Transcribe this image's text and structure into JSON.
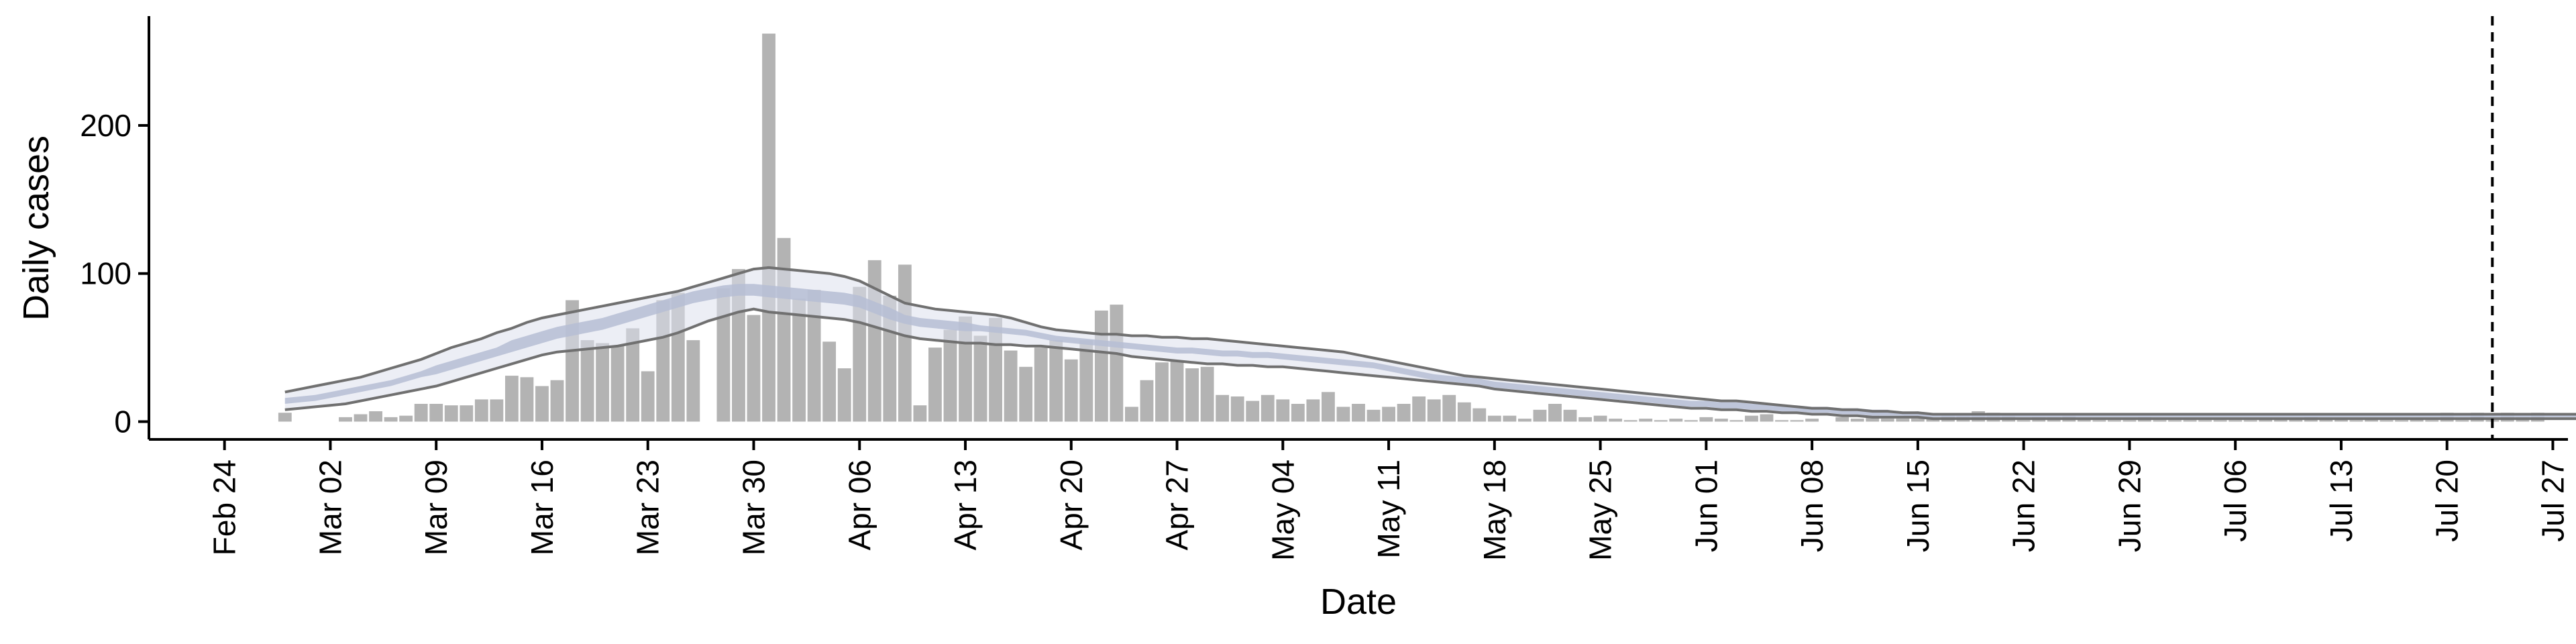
{
  "chart_data": {
    "type": "bar",
    "xlabel": "Date",
    "ylabel": "Daily cases",
    "ylim": [
      -12,
      272
    ],
    "xlim": [
      "2020-02-19",
      "2020-07-28"
    ],
    "y_ticks": [
      0,
      100,
      200
    ],
    "x_ticks": [
      {
        "date": "2020-02-24",
        "label": "Feb 24"
      },
      {
        "date": "2020-03-02",
        "label": "Mar 02"
      },
      {
        "date": "2020-03-09",
        "label": "Mar 09"
      },
      {
        "date": "2020-03-16",
        "label": "Mar 16"
      },
      {
        "date": "2020-03-23",
        "label": "Mar 23"
      },
      {
        "date": "2020-03-30",
        "label": "Mar 30"
      },
      {
        "date": "2020-04-06",
        "label": "Apr 06"
      },
      {
        "date": "2020-04-13",
        "label": "Apr 13"
      },
      {
        "date": "2020-04-20",
        "label": "Apr 20"
      },
      {
        "date": "2020-04-27",
        "label": "Apr 27"
      },
      {
        "date": "2020-05-04",
        "label": "May 04"
      },
      {
        "date": "2020-05-11",
        "label": "May 11"
      },
      {
        "date": "2020-05-18",
        "label": "May 18"
      },
      {
        "date": "2020-05-25",
        "label": "May 25"
      },
      {
        "date": "2020-06-01",
        "label": "Jun 01"
      },
      {
        "date": "2020-06-08",
        "label": "Jun 08"
      },
      {
        "date": "2020-06-15",
        "label": "Jun 15"
      },
      {
        "date": "2020-06-22",
        "label": "Jun 22"
      },
      {
        "date": "2020-06-29",
        "label": "Jun 29"
      },
      {
        "date": "2020-07-06",
        "label": "Jul 06"
      },
      {
        "date": "2020-07-13",
        "label": "Jul 13"
      },
      {
        "date": "2020-07-20",
        "label": "Jul 20"
      },
      {
        "date": "2020-07-27",
        "label": "Jul 27"
      }
    ],
    "vline_date": "2020-07-23",
    "bars_start_date": "2020-02-28",
    "bars": [
      6,
      0,
      0,
      0,
      3,
      5,
      7,
      3,
      4,
      12,
      12,
      11,
      11,
      15,
      15,
      31,
      30,
      24,
      28,
      82,
      55,
      53,
      51,
      63,
      34,
      82,
      87,
      55,
      0,
      90,
      103,
      72,
      262,
      124,
      83,
      89,
      54,
      36,
      91,
      109,
      85,
      106,
      11,
      50,
      62,
      71,
      58,
      70,
      48,
      37,
      50,
      55,
      42,
      55,
      75,
      79,
      10,
      28,
      40,
      41,
      36,
      37,
      18,
      17,
      14,
      18,
      15,
      12,
      15,
      20,
      10,
      12,
      8,
      10,
      12,
      17,
      15,
      18,
      13,
      9,
      4,
      4,
      2,
      8,
      12,
      8,
      3,
      4,
      2,
      1,
      2,
      1,
      2,
      1,
      3,
      2,
      1,
      4,
      5,
      1,
      1,
      2,
      0,
      3,
      2,
      4,
      2,
      2,
      2,
      2,
      5,
      4,
      7,
      6,
      4,
      1,
      3,
      3,
      4,
      2,
      1,
      1,
      1,
      3,
      1,
      1,
      1,
      1,
      1,
      1,
      1,
      2,
      2,
      2,
      3,
      2,
      2,
      1,
      2,
      1,
      1,
      2,
      1,
      6,
      1,
      6,
      1,
      6,
      3,
      6,
      0,
      0,
      2,
      0,
      0,
      0,
      1,
      1,
      1,
      0,
      0,
      10,
      0,
      3,
      3
    ],
    "series": [
      {
        "start_date": "2020-02-28",
        "upper": [
          20,
          22,
          24,
          26,
          28,
          30,
          33,
          36,
          39,
          42,
          46,
          50,
          53,
          56,
          60,
          63,
          67,
          70,
          72,
          74,
          76,
          78,
          80,
          82,
          84,
          86,
          88,
          91,
          94,
          97,
          100,
          103,
          104,
          103,
          102,
          101,
          100,
          98,
          95,
          90,
          85,
          80,
          78,
          76,
          75,
          74,
          73,
          72,
          70,
          67,
          64,
          62,
          61,
          60,
          59,
          59,
          58,
          58,
          57,
          57,
          56,
          56,
          55,
          54,
          53,
          52,
          51,
          50,
          49,
          48,
          47,
          45,
          43,
          41,
          39,
          37,
          35,
          33,
          31,
          30,
          29,
          28,
          27,
          26,
          25,
          24,
          23,
          22,
          21,
          20,
          19,
          18,
          17,
          16,
          15,
          14,
          14,
          13,
          12,
          11,
          10,
          9,
          9,
          8,
          8,
          7,
          7,
          6,
          6,
          5,
          5,
          5,
          5,
          5,
          5,
          5,
          5,
          5,
          5,
          5,
          5,
          5,
          5,
          5,
          5,
          5,
          5,
          5,
          5,
          5,
          5,
          5,
          5,
          5,
          5,
          5,
          5,
          5,
          5,
          5,
          5,
          5,
          5,
          5,
          5,
          5,
          5,
          5,
          5,
          5,
          5,
          5,
          5,
          5,
          5,
          6,
          7,
          8,
          9,
          10
        ],
        "lower": [
          8,
          9,
          10,
          11,
          12,
          14,
          16,
          18,
          20,
          22,
          24,
          27,
          30,
          33,
          36,
          39,
          42,
          45,
          47,
          48,
          49,
          50,
          51,
          53,
          55,
          57,
          60,
          64,
          68,
          71,
          74,
          76,
          74,
          73,
          72,
          71,
          70,
          69,
          67,
          64,
          61,
          58,
          56,
          55,
          54,
          53,
          53,
          52,
          52,
          51,
          51,
          50,
          49,
          48,
          47,
          46,
          44,
          43,
          42,
          41,
          40,
          39,
          39,
          38,
          38,
          37,
          37,
          36,
          35,
          34,
          33,
          32,
          31,
          30,
          29,
          28,
          27,
          26,
          25,
          24,
          22,
          21,
          20,
          19,
          18,
          17,
          16,
          15,
          14,
          13,
          12,
          11,
          10,
          9,
          9,
          8,
          8,
          7,
          7,
          6,
          6,
          5,
          5,
          4,
          4,
          3,
          3,
          3,
          3,
          2,
          2,
          2,
          2,
          2,
          2,
          2,
          2,
          2,
          2,
          2,
          2,
          2,
          2,
          2,
          2,
          2,
          2,
          2,
          2,
          2,
          2,
          2,
          2,
          2,
          2,
          2,
          2,
          2,
          2,
          2,
          2,
          2,
          2,
          2,
          2,
          2,
          2,
          2,
          2,
          2,
          2,
          2,
          2,
          2,
          2,
          2,
          2,
          2,
          2,
          2
        ],
        "median": [
          14,
          15,
          16,
          18,
          20,
          22,
          24,
          26,
          29,
          32,
          35,
          38,
          41,
          44,
          47,
          51,
          54,
          57,
          60,
          62,
          64,
          66,
          69,
          72,
          75,
          78,
          81,
          84,
          86,
          88,
          89,
          89,
          88,
          87,
          86,
          85,
          84,
          83,
          81,
          77,
          73,
          69,
          67,
          66,
          65,
          64,
          63,
          62,
          61,
          60,
          58,
          56,
          55,
          54,
          53,
          52,
          51,
          50,
          49,
          48,
          48,
          47,
          46,
          46,
          45,
          45,
          44,
          43,
          42,
          41,
          40,
          39,
          38,
          36,
          34,
          32,
          30,
          29,
          28,
          27,
          25,
          24,
          23,
          22,
          21,
          20,
          19,
          18,
          17,
          16,
          15,
          14,
          13,
          12,
          12,
          11,
          11,
          10,
          10,
          9,
          9,
          8,
          8,
          7,
          7,
          6,
          6,
          5,
          5,
          4,
          4,
          4,
          4,
          4,
          4,
          4,
          4,
          4,
          4,
          4,
          4,
          4,
          4,
          4,
          4,
          4,
          4,
          4,
          4,
          4,
          4,
          4,
          4,
          4,
          4,
          4,
          4,
          4,
          4,
          4,
          4,
          4,
          4,
          4,
          4,
          4,
          4,
          4,
          4,
          4,
          4,
          4,
          4,
          4,
          4,
          5,
          5,
          6,
          7,
          8
        ],
        "band_low": [
          12,
          13,
          14,
          16,
          18,
          20,
          22,
          24,
          27,
          30,
          32,
          35,
          38,
          41,
          44,
          47,
          50,
          53,
          56,
          58,
          60,
          62,
          65,
          68,
          71,
          74,
          77,
          80,
          82,
          84,
          85,
          85,
          84,
          83,
          82,
          81,
          80,
          79,
          77,
          73,
          69,
          66,
          64,
          63,
          62,
          61,
          61,
          60,
          59,
          58,
          56,
          54,
          53,
          52,
          51,
          50,
          49,
          48,
          47,
          46,
          46,
          45,
          44,
          44,
          43,
          43,
          42,
          41,
          40,
          39,
          38,
          37,
          36,
          34,
          32,
          30,
          28,
          27,
          26,
          25,
          23,
          22,
          21,
          20,
          19,
          18,
          17,
          16,
          15,
          14,
          13,
          12,
          11,
          10,
          10,
          9,
          9,
          8,
          8,
          7,
          7,
          6,
          6,
          5,
          5,
          4,
          4,
          4,
          3,
          3,
          3,
          3,
          3,
          3,
          3,
          3,
          3,
          3,
          3,
          3,
          3,
          3,
          3,
          3,
          3,
          3,
          3,
          3,
          3,
          3,
          3,
          3,
          3,
          3,
          3,
          3,
          3,
          3,
          3,
          3,
          3,
          3,
          3,
          3,
          3,
          3,
          3,
          3,
          3,
          3,
          3,
          3,
          3,
          3,
          3,
          4,
          4,
          5,
          6,
          7
        ],
        "band_high": [
          16,
          17,
          18,
          20,
          22,
          24,
          26,
          28,
          31,
          34,
          38,
          41,
          44,
          47,
          50,
          55,
          58,
          61,
          64,
          66,
          68,
          70,
          73,
          76,
          79,
          82,
          85,
          88,
          90,
          92,
          93,
          93,
          92,
          91,
          90,
          89,
          88,
          87,
          85,
          81,
          77,
          72,
          70,
          69,
          68,
          67,
          65,
          64,
          63,
          62,
          60,
          58,
          57,
          56,
          55,
          54,
          53,
          52,
          51,
          50,
          50,
          49,
          48,
          48,
          47,
          47,
          46,
          45,
          44,
          43,
          42,
          41,
          40,
          38,
          36,
          34,
          32,
          31,
          30,
          29,
          27,
          26,
          25,
          24,
          23,
          22,
          21,
          20,
          19,
          18,
          17,
          16,
          15,
          14,
          14,
          13,
          13,
          12,
          12,
          11,
          11,
          10,
          10,
          9,
          9,
          8,
          8,
          6,
          7,
          5,
          5,
          5,
          5,
          5,
          5,
          5,
          5,
          5,
          5,
          5,
          5,
          5,
          5,
          5,
          5,
          5,
          5,
          5,
          5,
          5,
          5,
          5,
          5,
          5,
          5,
          5,
          5,
          5,
          5,
          5,
          5,
          5,
          5,
          5,
          5,
          5,
          5,
          5,
          5,
          5,
          5,
          5,
          5,
          5,
          5,
          6,
          6,
          7,
          8,
          9
        ]
      }
    ],
    "colors": {
      "bars": "#b3b3b3",
      "band": "#b6bdd3",
      "band_outer": "#dde0ec",
      "bounds_line": "#707070",
      "axis": "#000000"
    }
  }
}
